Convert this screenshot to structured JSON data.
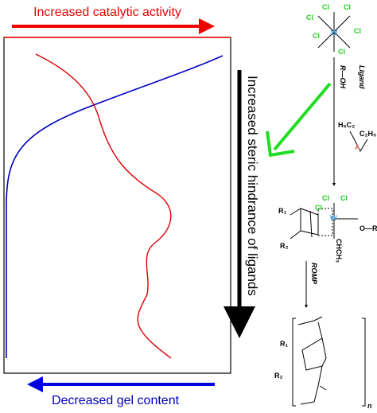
{
  "top_label": "Increased catalytic activity",
  "bottom_label": "Decreased gel content",
  "side_label": "Increased steric hindrance of ligands",
  "precursor": {
    "center": "W",
    "ligands": [
      "Cl",
      "Cl",
      "Cl",
      "Cl",
      "Cl",
      "Cl"
    ]
  },
  "step1": {
    "title": "Ligand",
    "reagent": "R—OH"
  },
  "ligand_structure": {
    "left": "H₅C₂",
    "center": "A",
    "right": "C₂H₅"
  },
  "complex": {
    "center": "W",
    "ligands": [
      "Cl",
      "Cl",
      "Cl"
    ],
    "alkoxide": "O—R",
    "carbene": "CHCH₃",
    "r1": "R₁",
    "r2": "R₂"
  },
  "step2": {
    "title": "ROMP"
  },
  "polymer": {
    "r1": "R₁",
    "r2": "R₂",
    "n": "n"
  }
}
